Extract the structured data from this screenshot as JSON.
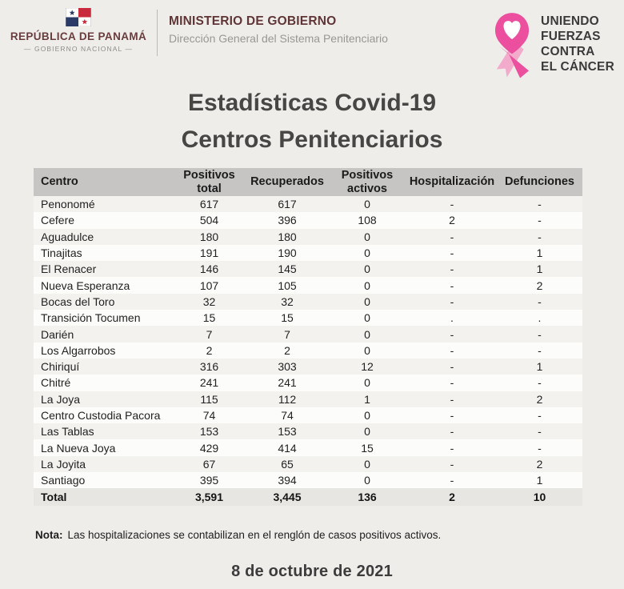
{
  "header": {
    "republic": "REPÚBLICA DE PANAMÁ",
    "national": "—  GOBIERNO NACIONAL  —",
    "ministry": "MINISTERIO DE GOBIERNO",
    "direction": "Dirección General del Sistema Penitenciario",
    "cancer_lines": [
      "UNIENDO",
      "FUERZAS",
      "CONTRA",
      "EL CÁNCER"
    ]
  },
  "title": {
    "line1": "Estadísticas Covid-19",
    "line2": "Centros Penitenciarios"
  },
  "table": {
    "columns": [
      "Centro",
      "Positivos\ntotal",
      "Recuperados",
      "Positivos\nactivos",
      "Hospitalización",
      "Defunciones"
    ],
    "rows": [
      [
        "Penonomé",
        "617",
        "617",
        "0",
        "-",
        "-"
      ],
      [
        "Cefere",
        "504",
        "396",
        "108",
        "2",
        "-"
      ],
      [
        "Aguadulce",
        "180",
        "180",
        "0",
        "-",
        "-"
      ],
      [
        "Tinajitas",
        "191",
        "190",
        "0",
        "-",
        "1"
      ],
      [
        "El Renacer",
        "146",
        "145",
        "0",
        "-",
        "1"
      ],
      [
        "Nueva Esperanza",
        "107",
        "105",
        "0",
        "-",
        "2"
      ],
      [
        "Bocas del Toro",
        "32",
        "32",
        "0",
        "-",
        "-"
      ],
      [
        "Transición Tocumen",
        "15",
        "15",
        "0",
        ".",
        "."
      ],
      [
        "Darién",
        "7",
        "7",
        "0",
        "-",
        "-"
      ],
      [
        "Los Algarrobos",
        "2",
        "2",
        "0",
        "-",
        "-"
      ],
      [
        "Chiriquí",
        "316",
        "303",
        "12",
        "-",
        "1"
      ],
      [
        "Chitré",
        "241",
        "241",
        "0",
        "-",
        "-"
      ],
      [
        "La Joya",
        "115",
        "112",
        "1",
        "-",
        "2"
      ],
      [
        "Centro Custodia Pacora",
        "74",
        "74",
        "0",
        "-",
        "-"
      ],
      [
        "Las Tablas",
        "153",
        "153",
        "0",
        "-",
        "-"
      ],
      [
        "La Nueva Joya",
        "429",
        "414",
        "15",
        "-",
        "-"
      ],
      [
        "La Joyita",
        "67",
        "65",
        "0",
        "-",
        "2"
      ],
      [
        "Santiago",
        "395",
        "394",
        "0",
        "-",
        "1"
      ]
    ],
    "total_row": [
      "Total",
      "3,591",
      "3,445",
      "136",
      "2",
      "10"
    ]
  },
  "note": {
    "label": "Nota:",
    "text": "Las hospitalizaciones se contabilizan en el renglón de casos positivos activos."
  },
  "date": "8 de octubre de 2021",
  "colors": {
    "accent_pink": "#ec4f9e",
    "light_pink": "#f3abcc",
    "maroon": "#693c3d",
    "flag_red": "#c9293d",
    "flag_blue": "#2b3b68",
    "table_header_gray": "#c6c5c3",
    "background": "#efedea"
  }
}
